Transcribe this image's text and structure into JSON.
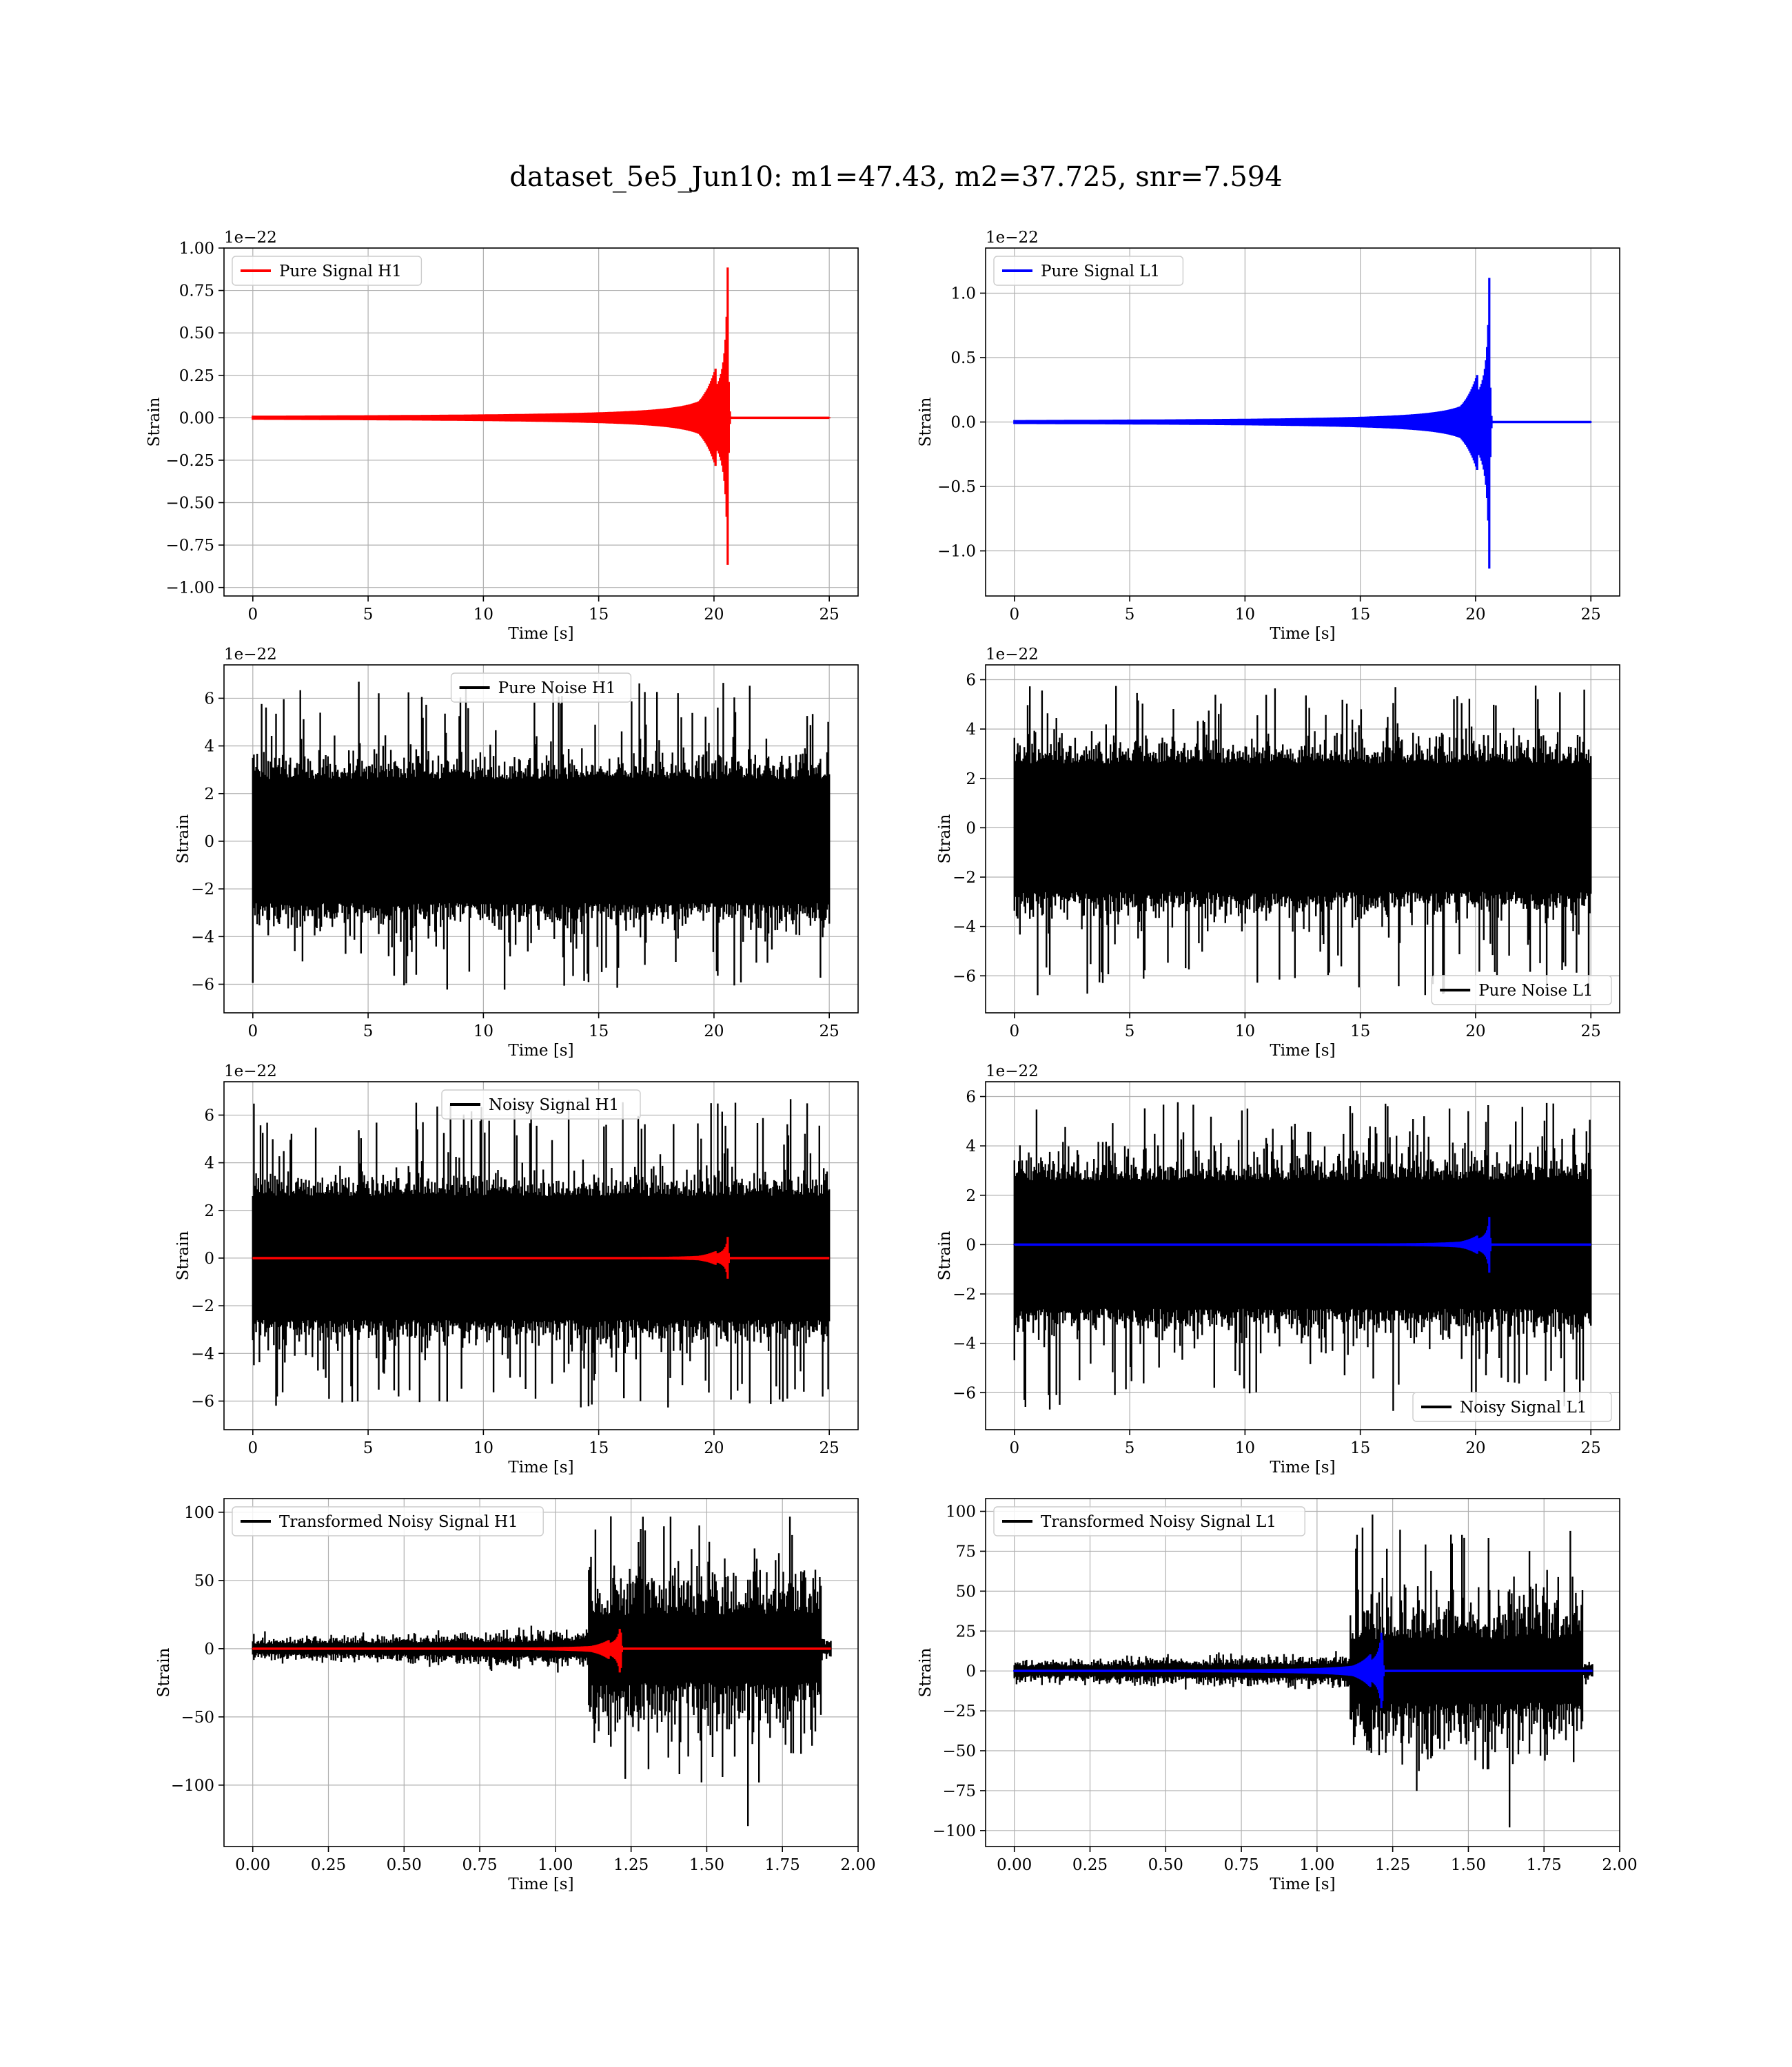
{
  "figure": {
    "title": "dataset_5e5_Jun10: m1=47.43, m2=37.725, snr=7.594",
    "signal_colors": {
      "H1": "#ff0000",
      "L1": "#0000ff"
    },
    "noise_color": "#000000"
  },
  "chart_data": [
    {
      "id": "pure-signal-h1",
      "type": "line",
      "xlabel": "Time [s]",
      "ylabel": "Strain",
      "exponent": "1e−22",
      "xlim": [
        -1.25,
        26.25
      ],
      "ylim": [
        -1.05,
        1.0
      ],
      "xticks": [
        0,
        5,
        10,
        15,
        20,
        25
      ],
      "xtick_labels": [
        "0",
        "5",
        "10",
        "15",
        "20",
        "25"
      ],
      "yticks": [
        -1.0,
        -0.75,
        -0.5,
        -0.25,
        0.0,
        0.25,
        0.5,
        0.75,
        1.0
      ],
      "ytick_labels": [
        "−1.00",
        "−0.75",
        "−0.50",
        "−0.25",
        "0.00",
        "0.25",
        "0.50",
        "0.75",
        "1.00"
      ],
      "legend": "upper-left",
      "series": [
        {
          "name": "Pure Signal H1",
          "color": "#ff0000",
          "kind": "chirp",
          "x_range": [
            0,
            25
          ],
          "merger_time": 20.6,
          "peak": 0.95,
          "min": -0.93
        }
      ]
    },
    {
      "id": "pure-signal-l1",
      "type": "line",
      "xlabel": "Time [s]",
      "ylabel": "Strain",
      "exponent": "1e−22",
      "xlim": [
        -1.25,
        26.25
      ],
      "ylim": [
        -1.35,
        1.35
      ],
      "xticks": [
        0,
        5,
        10,
        15,
        20,
        25
      ],
      "xtick_labels": [
        "0",
        "5",
        "10",
        "15",
        "20",
        "25"
      ],
      "yticks": [
        -1.0,
        -0.5,
        0.0,
        0.5,
        1.0
      ],
      "ytick_labels": [
        "−1.0",
        "−0.5",
        "0.0",
        "0.5",
        "1.0"
      ],
      "legend": "upper-left",
      "series": [
        {
          "name": "Pure Signal L1",
          "color": "#0000ff",
          "kind": "chirp",
          "x_range": [
            0,
            25
          ],
          "merger_time": 20.6,
          "peak": 1.2,
          "min": -1.22
        }
      ]
    },
    {
      "id": "pure-noise-h1",
      "type": "line",
      "xlabel": "Time [s]",
      "ylabel": "Strain",
      "exponent": "1e−22",
      "xlim": [
        -1.25,
        26.25
      ],
      "ylim": [
        -7.2,
        7.4
      ],
      "xticks": [
        0,
        5,
        10,
        15,
        20,
        25
      ],
      "xtick_labels": [
        "0",
        "5",
        "10",
        "15",
        "20",
        "25"
      ],
      "yticks": [
        -6,
        -4,
        -2,
        0,
        2,
        4,
        6
      ],
      "ytick_labels": [
        "−6",
        "−4",
        "−2",
        "0",
        "2",
        "4",
        "6"
      ],
      "legend": "upper-center",
      "series": [
        {
          "name": "Pure Noise H1",
          "color": "#000000",
          "kind": "noise",
          "x_range": [
            0,
            25
          ],
          "sigma": 1.0,
          "max": 6.9,
          "min": -6.5
        }
      ]
    },
    {
      "id": "pure-noise-l1",
      "type": "line",
      "xlabel": "Time [s]",
      "ylabel": "Strain",
      "exponent": "1e−22",
      "xlim": [
        -1.25,
        26.25
      ],
      "ylim": [
        -7.5,
        6.6
      ],
      "xticks": [
        0,
        5,
        10,
        15,
        20,
        25
      ],
      "xtick_labels": [
        "0",
        "5",
        "10",
        "15",
        "20",
        "25"
      ],
      "yticks": [
        -6,
        -4,
        -2,
        0,
        2,
        4,
        6
      ],
      "ytick_labels": [
        "−6",
        "−4",
        "−2",
        "0",
        "2",
        "4",
        "6"
      ],
      "legend": "lower-right",
      "series": [
        {
          "name": "Pure Noise L1",
          "color": "#000000",
          "kind": "noise",
          "x_range": [
            0,
            25
          ],
          "sigma": 1.0,
          "max": 6.0,
          "min": -7.0
        }
      ]
    },
    {
      "id": "noisy-signal-h1",
      "type": "line",
      "xlabel": "Time [s]",
      "ylabel": "Strain",
      "exponent": "1e−22",
      "xlim": [
        -1.25,
        26.25
      ],
      "ylim": [
        -7.2,
        7.4
      ],
      "xticks": [
        0,
        5,
        10,
        15,
        20,
        25
      ],
      "xtick_labels": [
        "0",
        "5",
        "10",
        "15",
        "20",
        "25"
      ],
      "yticks": [
        -6,
        -4,
        -2,
        0,
        2,
        4,
        6
      ],
      "ytick_labels": [
        "−6",
        "−4",
        "−2",
        "0",
        "2",
        "4",
        "6"
      ],
      "legend": "upper-center",
      "series": [
        {
          "name": "Noisy Signal H1",
          "color": "#000000",
          "kind": "noise",
          "x_range": [
            0,
            25
          ],
          "sigma": 1.0,
          "max": 6.9,
          "min": -6.5
        },
        {
          "color": "#ff0000",
          "kind": "chirp",
          "x_range": [
            0,
            25
          ],
          "merger_time": 20.6,
          "peak": 0.95,
          "min": -0.93
        }
      ]
    },
    {
      "id": "noisy-signal-l1",
      "type": "line",
      "xlabel": "Time [s]",
      "ylabel": "Strain",
      "exponent": "1e−22",
      "xlim": [
        -1.25,
        26.25
      ],
      "ylim": [
        -7.5,
        6.6
      ],
      "xticks": [
        0,
        5,
        10,
        15,
        20,
        25
      ],
      "xtick_labels": [
        "0",
        "5",
        "10",
        "15",
        "20",
        "25"
      ],
      "yticks": [
        -6,
        -4,
        -2,
        0,
        2,
        4,
        6
      ],
      "ytick_labels": [
        "−6",
        "−4",
        "−2",
        "0",
        "2",
        "4",
        "6"
      ],
      "legend": "lower-right",
      "series": [
        {
          "name": "Noisy Signal L1",
          "color": "#000000",
          "kind": "noise",
          "x_range": [
            0,
            25
          ],
          "sigma": 1.0,
          "max": 6.0,
          "min": -7.0
        },
        {
          "color": "#0000ff",
          "kind": "chirp",
          "x_range": [
            0,
            25
          ],
          "merger_time": 20.6,
          "peak": 1.2,
          "min": -1.22
        }
      ]
    },
    {
      "id": "transformed-noisy-signal-h1",
      "type": "line",
      "xlabel": "Time [s]",
      "ylabel": "Strain",
      "exponent": "",
      "xlim": [
        -0.095,
        2.0
      ],
      "ylim": [
        -145,
        110
      ],
      "xticks": [
        0.0,
        0.25,
        0.5,
        0.75,
        1.0,
        1.25,
        1.5,
        1.75,
        2.0
      ],
      "xtick_labels": [
        "0.00",
        "0.25",
        "0.50",
        "0.75",
        "1.00",
        "1.25",
        "1.50",
        "1.75",
        "2.00"
      ],
      "yticks": [
        -100,
        -50,
        0,
        50,
        100
      ],
      "ytick_labels": [
        "−100",
        "−50",
        "0",
        "50",
        "100"
      ],
      "legend": "upper-left",
      "series": [
        {
          "name": "Transformed Noisy Signal H1",
          "color": "#000000",
          "kind": "whitened",
          "x_range": [
            0,
            1.91
          ],
          "jump_time": 1.11,
          "early_amp": 10,
          "late_amp": 45,
          "max": 97,
          "min": -130
        },
        {
          "color": "#ff0000",
          "kind": "chirp",
          "x_range": [
            0,
            1.91
          ],
          "merger_time": 1.215,
          "peak": 20,
          "min": -24
        }
      ]
    },
    {
      "id": "transformed-noisy-signal-l1",
      "type": "line",
      "xlabel": "Time [s]",
      "ylabel": "Strain",
      "exponent": "",
      "xlim": [
        -0.095,
        2.0
      ],
      "ylim": [
        -110,
        108
      ],
      "xticks": [
        0.0,
        0.25,
        0.5,
        0.75,
        1.0,
        1.25,
        1.5,
        1.75,
        2.0
      ],
      "xtick_labels": [
        "0.00",
        "0.25",
        "0.50",
        "0.75",
        "1.00",
        "1.25",
        "1.50",
        "1.75",
        "2.00"
      ],
      "yticks": [
        -100,
        -75,
        -50,
        -25,
        0,
        25,
        50,
        75,
        100
      ],
      "ytick_labels": [
        "−100",
        "−75",
        "−50",
        "−25",
        "0",
        "25",
        "50",
        "75",
        "100"
      ],
      "legend": "upper-left",
      "series": [
        {
          "name": "Transformed Noisy Signal L1",
          "color": "#000000",
          "kind": "whitened",
          "x_range": [
            0,
            1.91
          ],
          "jump_time": 1.11,
          "early_amp": 8,
          "late_amp": 36,
          "max": 98,
          "min": -98
        },
        {
          "color": "#0000ff",
          "kind": "chirp",
          "x_range": [
            0,
            1.91
          ],
          "merger_time": 1.215,
          "peak": 33,
          "min": -32
        }
      ]
    }
  ]
}
